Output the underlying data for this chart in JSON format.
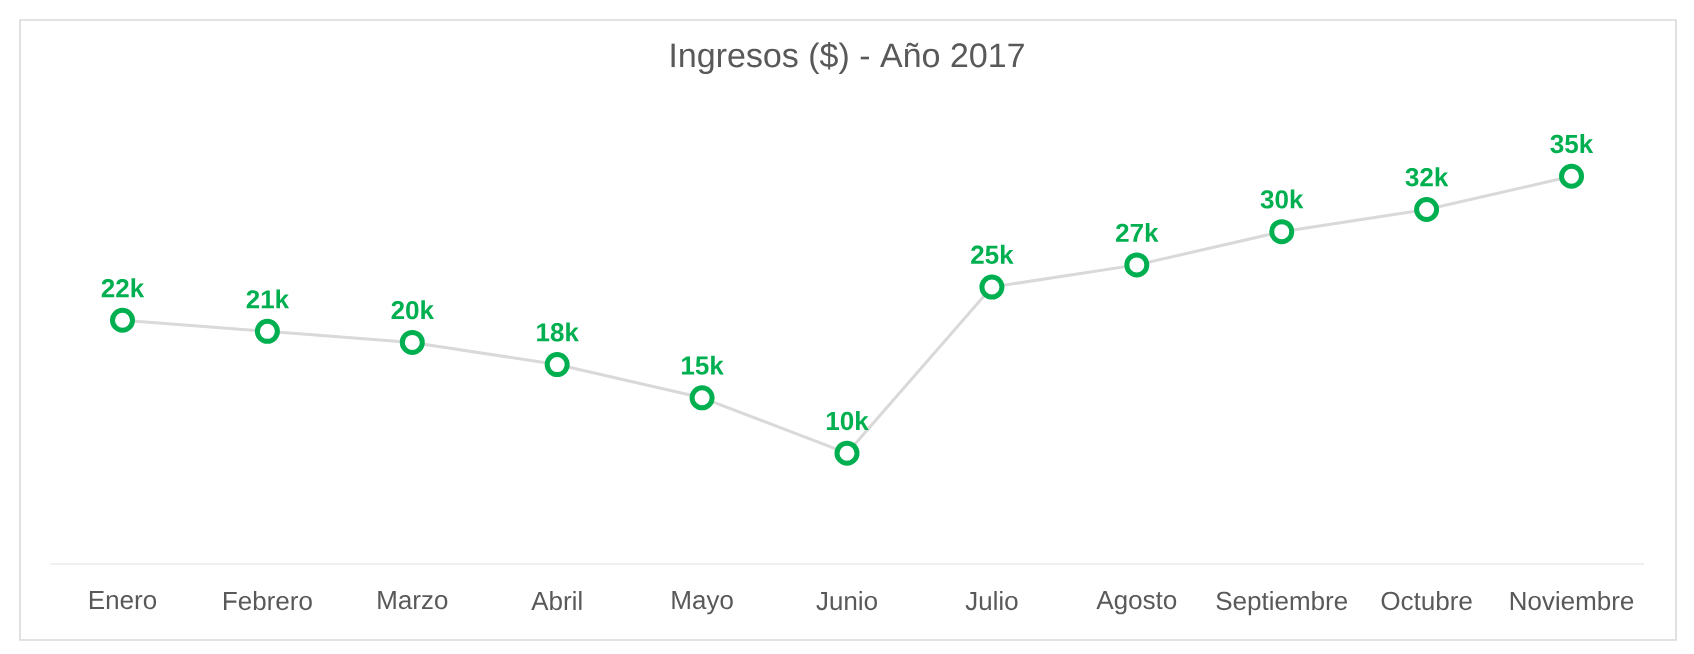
{
  "chart_data": {
    "type": "line",
    "title": "Ingresos ($) - Año 2017",
    "categories": [
      "Enero",
      "Febrero",
      "Marzo",
      "Abril",
      "Mayo",
      "Junio",
      "Julio",
      "Agosto",
      "Septiembre",
      "Octubre",
      "Noviembre"
    ],
    "values": [
      22,
      21,
      20,
      18,
      15,
      10,
      25,
      27,
      30,
      32,
      35
    ],
    "value_labels": [
      "22k",
      "21k",
      "20k",
      "18k",
      "15k",
      "10k",
      "25k",
      "27k",
      "30k",
      "32k",
      "35k"
    ],
    "color": "#00b050",
    "marker": "circle",
    "line_style": "solid",
    "tick_labels": "x"
  }
}
